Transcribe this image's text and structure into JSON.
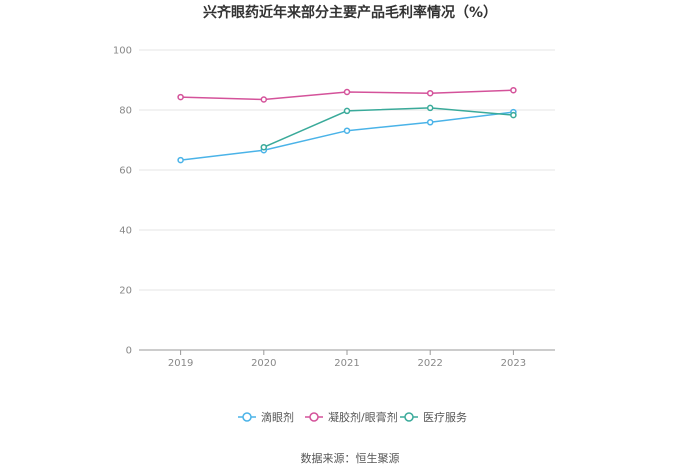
{
  "chart_data": {
    "type": "line",
    "title": "兴齐眼药近年来部分主要产品毛利率情况（%）",
    "x": [
      "2019",
      "2020",
      "2021",
      "2022",
      "2023"
    ],
    "ylim": [
      0,
      100
    ],
    "yticks": [
      0,
      20,
      40,
      60,
      80,
      100
    ],
    "grid": true,
    "legend_position": "bottom",
    "series": [
      {
        "name": "滴眼剂",
        "color": "#4ab3e8",
        "values": [
          63.3,
          66.6,
          73.1,
          75.9,
          79.3
        ]
      },
      {
        "name": "凝胶剂/眼膏剂",
        "color": "#d4529a",
        "values": [
          84.3,
          83.5,
          86.0,
          85.6,
          86.6
        ]
      },
      {
        "name": "医疗服务",
        "color": "#3aaa9a",
        "values": [
          null,
          67.6,
          79.7,
          80.7,
          78.3
        ]
      }
    ]
  },
  "source_text": "数据来源：恒生聚源"
}
